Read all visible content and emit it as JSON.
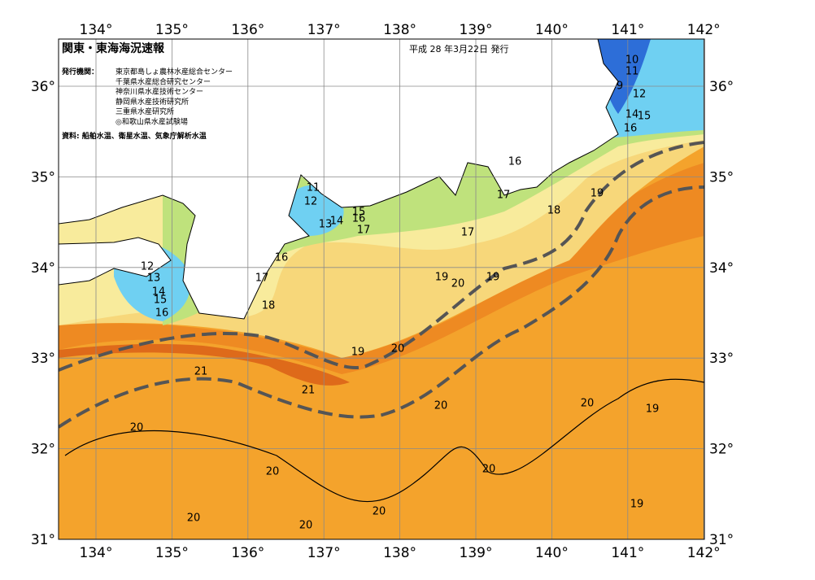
{
  "header": {
    "title": "関東・東海海況速報",
    "date": "平成 28 年3月22日 発行"
  },
  "issuers": {
    "label": "発行機関：",
    "names": [
      "東京都島しょ農林水産総合センター",
      "千葉県水産総合研究センター",
      "神奈川県水産技術センター",
      "静岡県水産技術研究所",
      "三重県水産研究所",
      "◎和歌山県水産試験場"
    ]
  },
  "source": "資料: 船舶水温、衛星水温、気象庁解析水温",
  "axes": {
    "longitude": [
      "134°",
      "135°",
      "136°",
      "137°",
      "138°",
      "139°",
      "140°",
      "141°",
      "142°"
    ],
    "latitude": [
      "31°",
      "32°",
      "33°",
      "34°",
      "35°",
      "36°"
    ]
  },
  "contour_labels": [
    "10",
    "11",
    "9",
    "12",
    "14",
    "15",
    "16",
    "16",
    "17",
    "19",
    "18",
    "11",
    "12",
    "13",
    "14",
    "15",
    "16",
    "17",
    "17",
    "16",
    "17",
    "12",
    "13",
    "14",
    "15",
    "16",
    "18",
    "19",
    "20",
    "19",
    "19",
    "20",
    "21",
    "21",
    "20",
    "20",
    "19",
    "20",
    "20",
    "20",
    "20",
    "19",
    "20",
    "20"
  ]
}
